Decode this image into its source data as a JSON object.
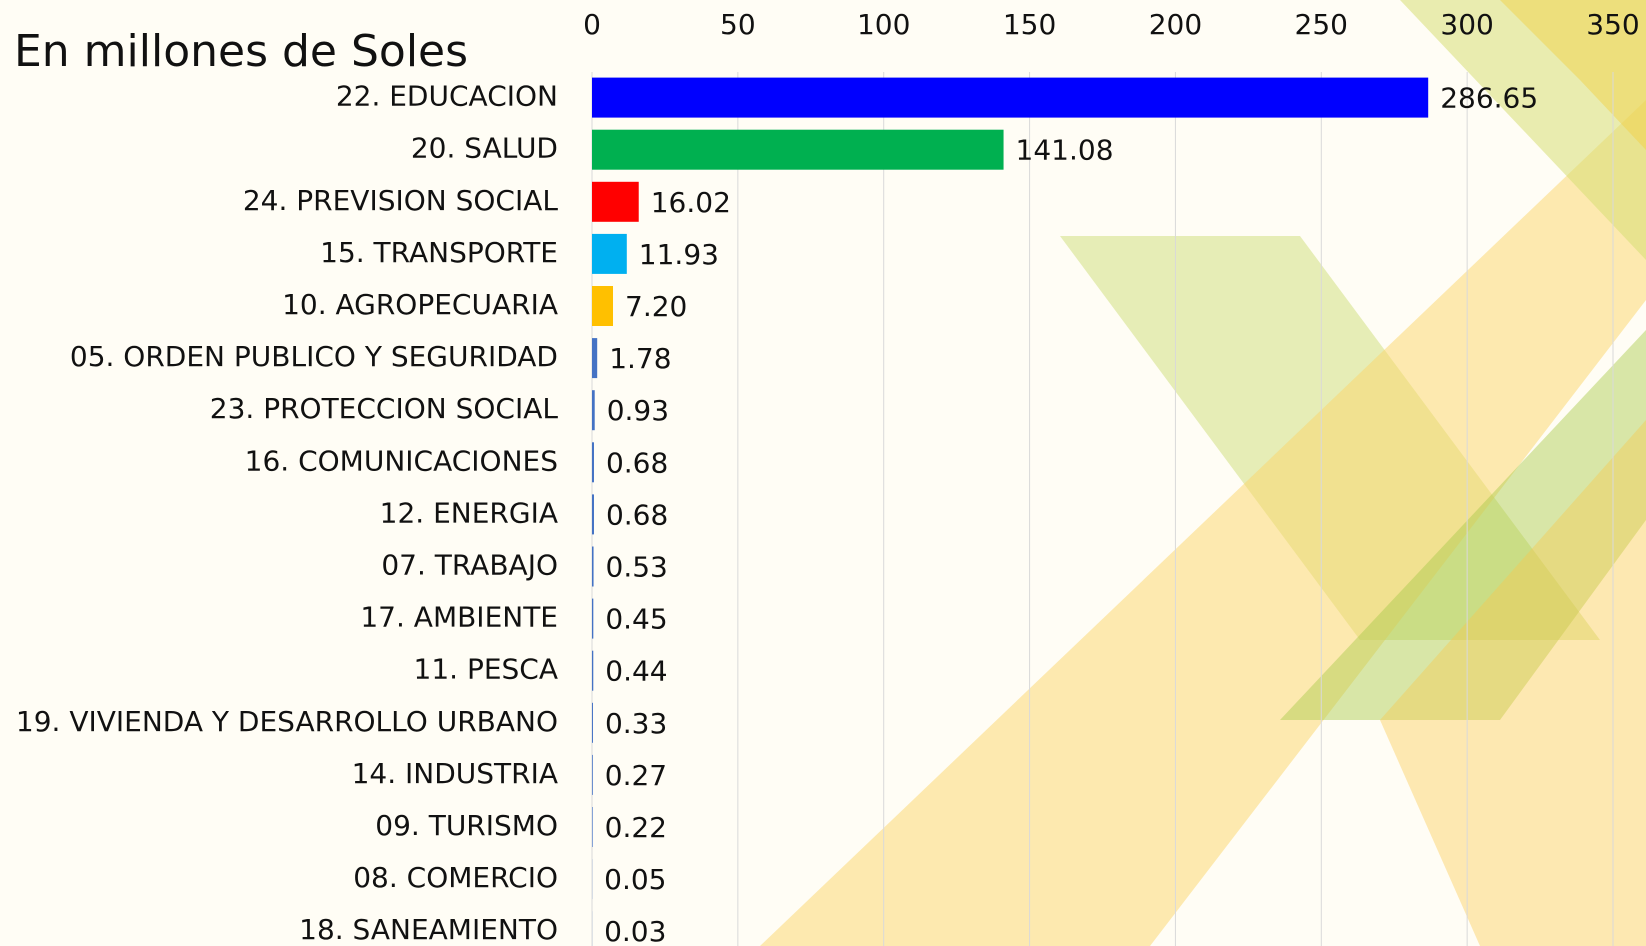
{
  "chart_data": {
    "type": "bar",
    "orientation": "horizontal",
    "title": "En millones de Soles",
    "categories": [
      "22. EDUCACION",
      "20. SALUD",
      "24. PREVISION SOCIAL",
      "15. TRANSPORTE",
      "10. AGROPECUARIA",
      "05. ORDEN PUBLICO Y SEGURIDAD",
      "23. PROTECCION SOCIAL",
      "16. COMUNICACIONES",
      "12. ENERGIA",
      "07. TRABAJO",
      "17. AMBIENTE",
      "11. PESCA",
      "19. VIVIENDA Y DESARROLLO URBANO",
      "14. INDUSTRIA",
      "09. TURISMO",
      "08. COMERCIO",
      "18. SANEAMIENTO"
    ],
    "values": [
      286.65,
      141.08,
      16.02,
      11.93,
      7.2,
      1.78,
      0.93,
      0.68,
      0.68,
      0.53,
      0.45,
      0.44,
      0.33,
      0.27,
      0.22,
      0.05,
      0.03
    ],
    "value_labels": [
      "286.65",
      "141.08",
      "16.02",
      "11.93",
      "7.20",
      "1.78",
      "0.93",
      "0.68",
      "0.68",
      "0.53",
      "0.45",
      "0.44",
      "0.33",
      "0.27",
      "0.22",
      "0.05",
      "0.03"
    ],
    "colors": [
      "#0000ff",
      "#00b050",
      "#ff0000",
      "#00b0f0",
      "#ffc000",
      "#4472c4",
      "#4472c4",
      "#4472c4",
      "#4472c4",
      "#4472c4",
      "#4472c4",
      "#4472c4",
      "#4472c4",
      "#4472c4",
      "#4472c4",
      "#4472c4",
      "#4472c4"
    ],
    "xlim": [
      0,
      350
    ],
    "xticks": [
      0,
      50,
      100,
      150,
      200,
      250,
      300,
      350
    ],
    "grid": true
  }
}
